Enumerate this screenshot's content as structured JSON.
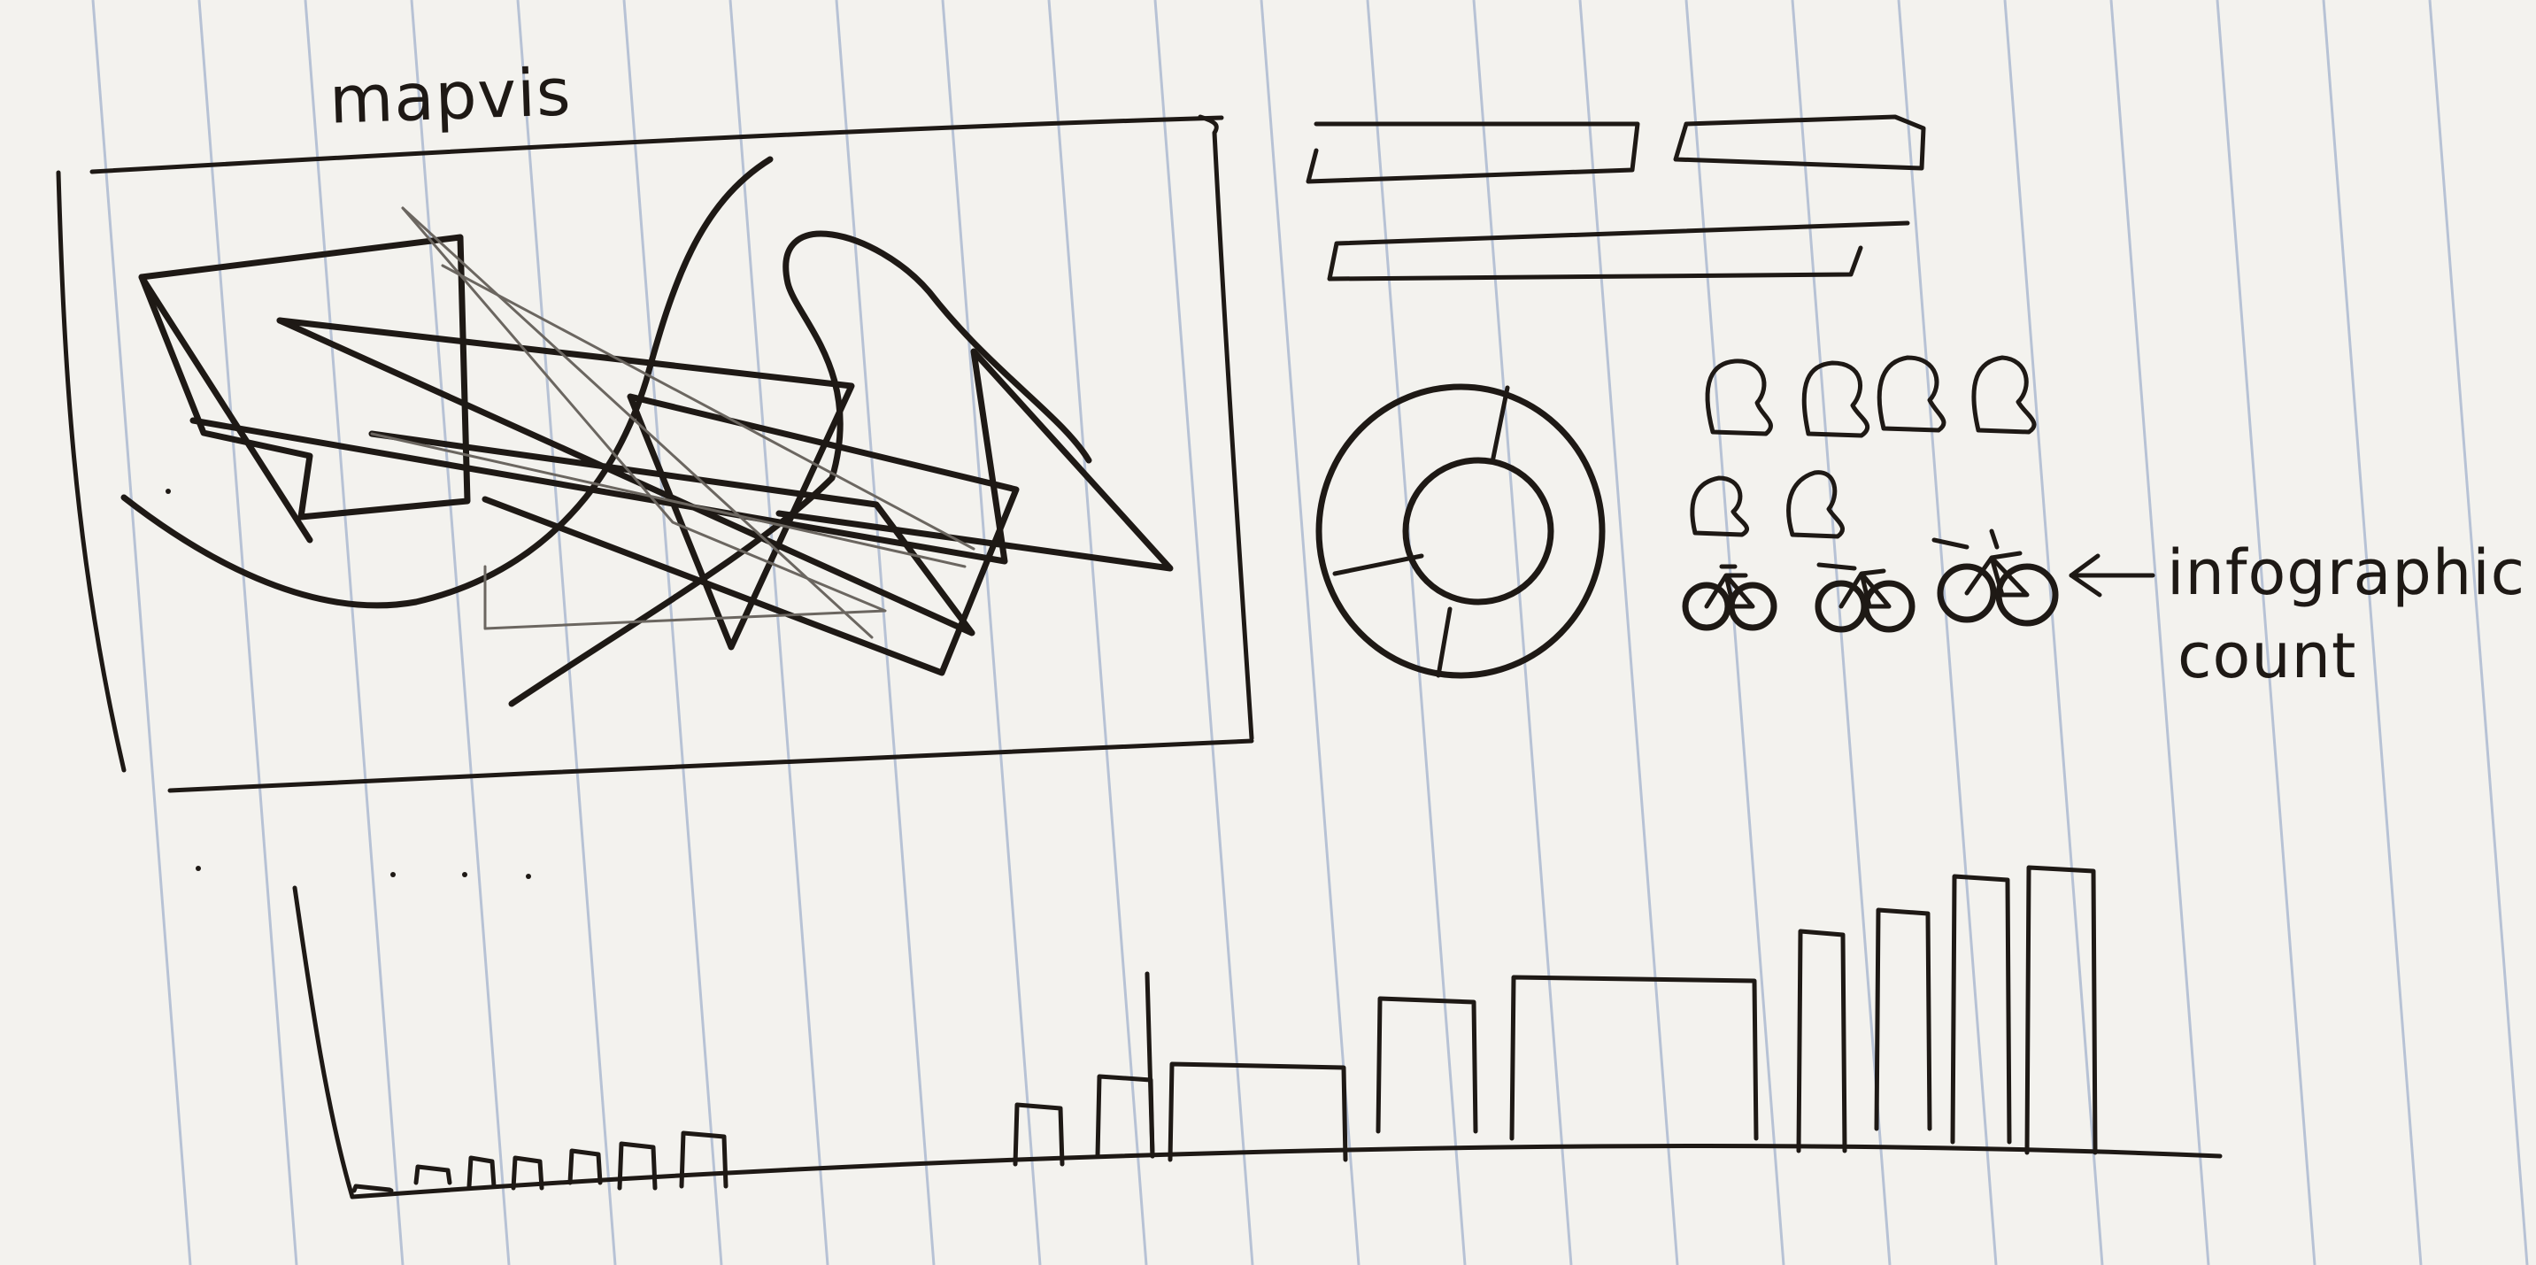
{
  "sketch": {
    "map_title": "mapvis",
    "infographic_label_line1": "infographic",
    "infographic_label_line2": "count"
  },
  "infographic": {
    "person_icons": 6,
    "bike_icons": 3
  },
  "colors": {
    "paper": "#f3f2ee",
    "rule_line": "#a9b7cf",
    "ink": "#1e1915"
  }
}
